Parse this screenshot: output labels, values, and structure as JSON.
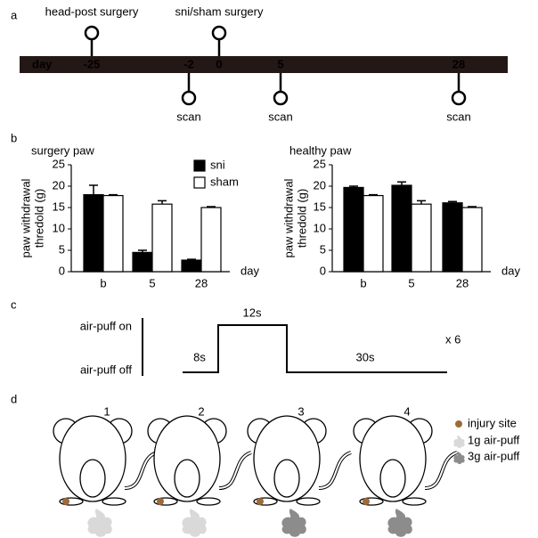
{
  "panels": [
    "a",
    "b",
    "c",
    "d"
  ],
  "timeline": {
    "label": "day",
    "days": [
      "-25",
      "-2",
      "0",
      "5",
      "28"
    ],
    "events_above": [
      "head-post surgery",
      "sni/sham surgery"
    ],
    "events_below": [
      "scan",
      "scan",
      "scan"
    ]
  },
  "chart_data": [
    {
      "type": "bar",
      "title": "surgery paw",
      "ylabel": [
        "paw withdrawal",
        "thredold (g)"
      ],
      "xlabel": "day",
      "categories": [
        "b",
        "5",
        "28"
      ],
      "ylim": [
        0,
        25
      ],
      "yticks": [
        0,
        5,
        10,
        15,
        20,
        25
      ],
      "legend": true,
      "series": [
        {
          "name": "sni",
          "color": "#000000",
          "values": [
            18,
            4.5,
            2.7
          ],
          "errors": [
            2.2,
            0.5,
            0.2
          ]
        },
        {
          "name": "sham",
          "color": "#ffffff",
          "values": [
            17.8,
            15.8,
            15
          ],
          "errors": [
            0.2,
            0.8,
            0.2
          ]
        }
      ]
    },
    {
      "type": "bar",
      "title": "healthy paw",
      "ylabel": [
        "paw withdrawal",
        "thredold (g)"
      ],
      "xlabel": "day",
      "categories": [
        "b",
        "5",
        "28"
      ],
      "ylim": [
        0,
        25
      ],
      "yticks": [
        0,
        5,
        10,
        15,
        20,
        25
      ],
      "legend": false,
      "series": [
        {
          "color": "#000000",
          "values": [
            19.7,
            20.2,
            16.1
          ],
          "errors": [
            0.3,
            0.8,
            0.3
          ]
        },
        {
          "color": "#ffffff",
          "values": [
            17.8,
            15.8,
            15
          ],
          "errors": [
            0.2,
            0.8,
            0.2
          ]
        }
      ]
    }
  ],
  "stimulus": {
    "on_label": "air-puff on",
    "off_label": "air-puff off",
    "durations": [
      "8s",
      "12s",
      "30s"
    ],
    "repeat": "x 6"
  },
  "mice": {
    "labels": [
      "1",
      "2",
      "3",
      "4"
    ],
    "legend": [
      "injury site",
      "1g air-puff",
      "3g air-puff"
    ],
    "colors": {
      "injury": "#9b6b3a",
      "light": "#d9d9d9",
      "dark": "#8c8c8c"
    }
  }
}
